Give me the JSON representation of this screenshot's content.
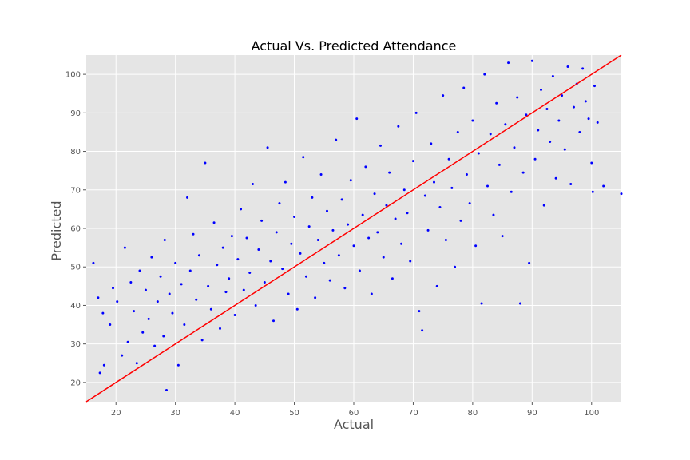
{
  "chart_data": {
    "type": "scatter",
    "title": "Actual Vs. Predicted Attendance",
    "xlabel": "Actual",
    "ylabel": "Predicted",
    "xlim": [
      15,
      105
    ],
    "ylim": [
      15,
      105
    ],
    "x_ticks": [
      20,
      30,
      40,
      50,
      60,
      70,
      80,
      90,
      100
    ],
    "y_ticks": [
      20,
      30,
      40,
      50,
      60,
      70,
      80,
      90,
      100
    ],
    "grid": true,
    "style": "ggplot",
    "series": [
      {
        "kind": "scatter",
        "color": "#0000ff",
        "marker": "dot",
        "points": [
          [
            16.2,
            51.0
          ],
          [
            17.0,
            42.0
          ],
          [
            17.3,
            22.5
          ],
          [
            17.8,
            38.0
          ],
          [
            18.0,
            24.5
          ],
          [
            19.0,
            35.0
          ],
          [
            19.5,
            44.5
          ],
          [
            20.2,
            41.0
          ],
          [
            21.0,
            27.0
          ],
          [
            21.5,
            55.0
          ],
          [
            22.0,
            30.5
          ],
          [
            22.5,
            46.0
          ],
          [
            23.0,
            38.5
          ],
          [
            23.5,
            25.0
          ],
          [
            24.0,
            49.0
          ],
          [
            24.5,
            33.0
          ],
          [
            25.0,
            44.0
          ],
          [
            25.5,
            36.5
          ],
          [
            26.0,
            52.5
          ],
          [
            26.5,
            29.5
          ],
          [
            27.0,
            41.0
          ],
          [
            27.5,
            47.5
          ],
          [
            28.0,
            32.0
          ],
          [
            28.2,
            57.0
          ],
          [
            28.5,
            18.0
          ],
          [
            29.0,
            43.0
          ],
          [
            29.5,
            38.0
          ],
          [
            30.0,
            51.0
          ],
          [
            30.5,
            24.5
          ],
          [
            31.0,
            45.5
          ],
          [
            31.5,
            35.0
          ],
          [
            32.0,
            68.0
          ],
          [
            32.5,
            49.0
          ],
          [
            33.0,
            58.5
          ],
          [
            33.5,
            41.5
          ],
          [
            34.0,
            53.0
          ],
          [
            34.5,
            31.0
          ],
          [
            35.0,
            77.0
          ],
          [
            35.5,
            45.0
          ],
          [
            36.0,
            39.0
          ],
          [
            36.5,
            61.5
          ],
          [
            37.0,
            50.5
          ],
          [
            37.5,
            34.0
          ],
          [
            38.0,
            55.0
          ],
          [
            38.5,
            43.5
          ],
          [
            39.0,
            47.0
          ],
          [
            39.5,
            58.0
          ],
          [
            40.0,
            37.5
          ],
          [
            40.5,
            52.0
          ],
          [
            41.0,
            65.0
          ],
          [
            41.5,
            44.0
          ],
          [
            42.0,
            57.5
          ],
          [
            42.5,
            48.5
          ],
          [
            43.0,
            71.5
          ],
          [
            43.5,
            40.0
          ],
          [
            44.0,
            54.5
          ],
          [
            44.5,
            62.0
          ],
          [
            45.0,
            46.0
          ],
          [
            45.5,
            81.0
          ],
          [
            46.0,
            51.5
          ],
          [
            46.5,
            36.0
          ],
          [
            47.0,
            59.0
          ],
          [
            47.5,
            66.5
          ],
          [
            48.0,
            49.5
          ],
          [
            48.5,
            72.0
          ],
          [
            49.0,
            43.0
          ],
          [
            49.5,
            56.0
          ],
          [
            50.0,
            63.0
          ],
          [
            50.5,
            39.0
          ],
          [
            51.0,
            53.5
          ],
          [
            51.5,
            78.5
          ],
          [
            52.0,
            47.5
          ],
          [
            52.5,
            60.5
          ],
          [
            53.0,
            68.0
          ],
          [
            53.5,
            42.0
          ],
          [
            54.0,
            57.0
          ],
          [
            54.5,
            74.0
          ],
          [
            55.0,
            51.0
          ],
          [
            55.5,
            64.5
          ],
          [
            56.0,
            46.5
          ],
          [
            56.5,
            59.5
          ],
          [
            57.0,
            83.0
          ],
          [
            57.5,
            53.0
          ],
          [
            58.0,
            67.5
          ],
          [
            58.5,
            44.5
          ],
          [
            59.0,
            61.0
          ],
          [
            59.5,
            72.5
          ],
          [
            60.0,
            55.5
          ],
          [
            60.5,
            88.5
          ],
          [
            61.0,
            49.0
          ],
          [
            61.5,
            63.5
          ],
          [
            62.0,
            76.0
          ],
          [
            62.5,
            57.5
          ],
          [
            63.0,
            43.0
          ],
          [
            63.5,
            69.0
          ],
          [
            64.0,
            59.0
          ],
          [
            64.5,
            81.5
          ],
          [
            65.0,
            52.5
          ],
          [
            65.5,
            66.0
          ],
          [
            66.0,
            74.5
          ],
          [
            66.5,
            47.0
          ],
          [
            67.0,
            62.5
          ],
          [
            67.5,
            86.5
          ],
          [
            68.0,
            56.0
          ],
          [
            68.5,
            70.0
          ],
          [
            69.0,
            64.0
          ],
          [
            69.5,
            51.5
          ],
          [
            70.0,
            77.5
          ],
          [
            70.5,
            90.0
          ],
          [
            71.0,
            38.5
          ],
          [
            71.5,
            33.5
          ],
          [
            72.0,
            68.5
          ],
          [
            72.5,
            59.5
          ],
          [
            73.0,
            82.0
          ],
          [
            73.5,
            72.0
          ],
          [
            74.0,
            45.0
          ],
          [
            74.5,
            65.5
          ],
          [
            75.0,
            94.5
          ],
          [
            75.5,
            57.0
          ],
          [
            76.0,
            78.0
          ],
          [
            76.5,
            70.5
          ],
          [
            77.0,
            50.0
          ],
          [
            77.5,
            85.0
          ],
          [
            78.0,
            62.0
          ],
          [
            78.5,
            96.5
          ],
          [
            79.0,
            74.0
          ],
          [
            79.5,
            66.5
          ],
          [
            80.0,
            88.0
          ],
          [
            80.5,
            55.5
          ],
          [
            81.0,
            79.5
          ],
          [
            81.5,
            40.5
          ],
          [
            82.0,
            100.0
          ],
          [
            82.5,
            71.0
          ],
          [
            83.0,
            84.5
          ],
          [
            83.5,
            63.5
          ],
          [
            84.0,
            92.5
          ],
          [
            84.5,
            76.5
          ],
          [
            85.0,
            58.0
          ],
          [
            85.5,
            87.0
          ],
          [
            86.0,
            103.0
          ],
          [
            86.5,
            69.5
          ],
          [
            87.0,
            81.0
          ],
          [
            87.5,
            94.0
          ],
          [
            88.0,
            40.5
          ],
          [
            88.5,
            74.5
          ],
          [
            89.0,
            89.5
          ],
          [
            89.5,
            51.0
          ],
          [
            90.0,
            103.5
          ],
          [
            90.5,
            78.0
          ],
          [
            91.0,
            85.5
          ],
          [
            91.5,
            96.0
          ],
          [
            92.0,
            66.0
          ],
          [
            92.5,
            91.0
          ],
          [
            93.0,
            82.5
          ],
          [
            93.5,
            99.5
          ],
          [
            94.0,
            73.0
          ],
          [
            94.5,
            88.0
          ],
          [
            95.0,
            94.5
          ],
          [
            95.5,
            80.5
          ],
          [
            96.0,
            102.0
          ],
          [
            96.5,
            71.5
          ],
          [
            97.0,
            91.5
          ],
          [
            97.5,
            97.5
          ],
          [
            98.0,
            85.0
          ],
          [
            98.5,
            101.5
          ],
          [
            99.0,
            93.0
          ],
          [
            99.5,
            88.5
          ],
          [
            100.0,
            77.0
          ],
          [
            100.2,
            69.5
          ],
          [
            100.5,
            97.0
          ],
          [
            101.0,
            87.5
          ],
          [
            102.0,
            71.0
          ],
          [
            105.0,
            69.0
          ]
        ]
      },
      {
        "kind": "line",
        "color": "#ff0000",
        "points": [
          [
            15,
            15
          ],
          [
            105,
            105
          ]
        ]
      }
    ]
  }
}
